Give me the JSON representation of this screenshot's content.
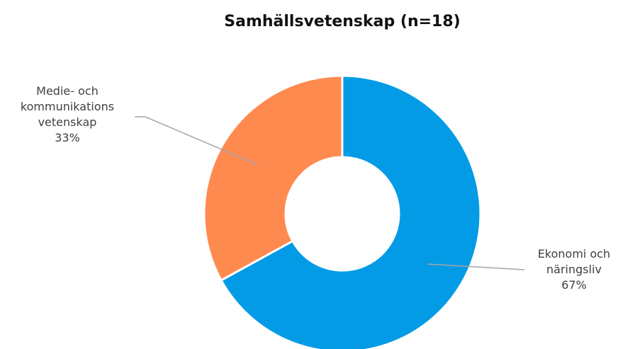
{
  "chart_data": {
    "type": "donut",
    "title": "Samhällsvetenskap (n=18)",
    "categories": [
      "Ekonomi och näringsliv",
      "Medie- och kommunikations vetenskap"
    ],
    "values": [
      67,
      33
    ],
    "value_labels": [
      "67%",
      "33%"
    ],
    "colors": [
      "#039be5",
      "#ff8a50"
    ]
  }
}
